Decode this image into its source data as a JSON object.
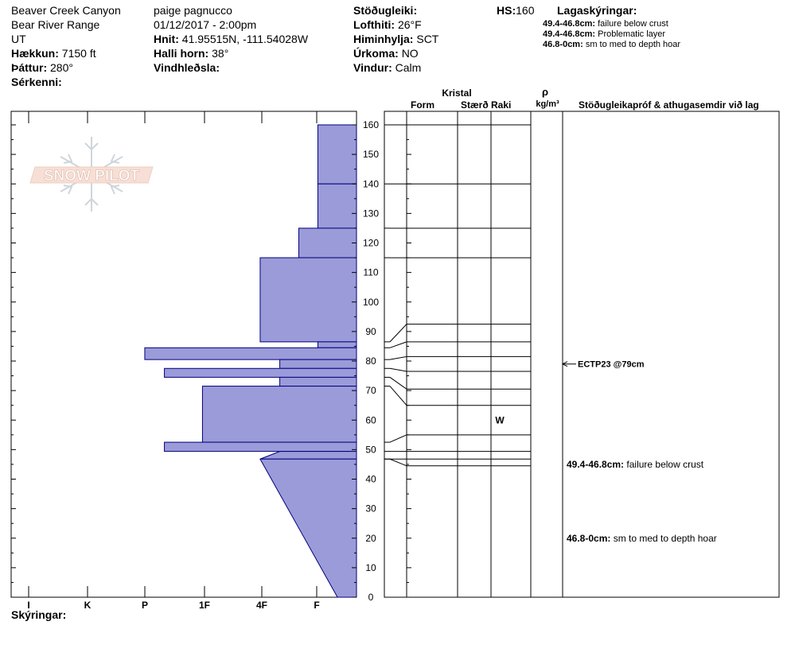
{
  "header": {
    "location": "Beaver Creek Canyon",
    "range": "Bear River Range",
    "state": "UT",
    "elevation_label": "Hækkun:",
    "elevation_value": "7150 ft",
    "aspect_label": "Þáttur:",
    "aspect_value": "280°",
    "features_label": "Sérkenni:",
    "observer": "paige pagnucco",
    "datetime": "01/12/2017 - 2:00pm",
    "coords_label": "Hnit:",
    "coords_value": "41.95515N, -111.54028W",
    "slope_label": "Halli horn:",
    "slope_value": "38°",
    "wind_loading_label": "Vindhleðsla:",
    "stability_label": "Stöðugleiki:",
    "air_temp_label": "Lofthiti:",
    "air_temp_value": "26°F",
    "sky_label": "Himinhylja:",
    "sky_value": "SCT",
    "precip_label": "Úrkoma:",
    "precip_value": "NO",
    "wind_label": "Vindur:",
    "wind_value": "Calm",
    "hs_label": "HS:",
    "hs_value": "160",
    "legend_title": "Lagaskýringar:",
    "legend_items": [
      {
        "range": "49.4-46.8cm:",
        "text": "failure below crust"
      },
      {
        "range": "49.4-46.8cm:",
        "text": "Problematic layer"
      },
      {
        "range": "46.8-0cm:",
        "text": "sm to med to depth hoar"
      }
    ]
  },
  "logo": {
    "text": "SNOW PILOT"
  },
  "columns": {
    "crystal_title": "Kristal",
    "form": "Form",
    "size": "Stærð",
    "moisture": "Raki",
    "density_symbol": "ρ",
    "density_unit": "kg/m³",
    "comments": "Stöðugleikapróf & athugasemdir við lag"
  },
  "footer": {
    "notes_label": "Skýringar:"
  },
  "chart_data": {
    "type": "bar",
    "orientation": "horizontal",
    "hardness_categories": [
      "I",
      "K",
      "P",
      "1F",
      "4F",
      "F"
    ],
    "ylim": [
      0,
      160
    ],
    "y_ticks": [
      0,
      10,
      20,
      30,
      40,
      50,
      60,
      70,
      80,
      90,
      100,
      110,
      120,
      130,
      140,
      150,
      160
    ],
    "layers": [
      {
        "top": 160,
        "bottom": 140,
        "hardness": 0.67
      },
      {
        "top": 140,
        "bottom": 125,
        "hardness": 0.67
      },
      {
        "top": 125,
        "bottom": 115,
        "hardness": 1.0
      },
      {
        "top": 115,
        "bottom": 86.5,
        "hardness": 1.67
      },
      {
        "top": 86.5,
        "bottom": 84.5,
        "hardness": 0.67
      },
      {
        "top": 84.5,
        "bottom": 80.5,
        "hardness": 3.67
      },
      {
        "top": 80.5,
        "bottom": 77.5,
        "hardness": 1.33
      },
      {
        "top": 77.5,
        "bottom": 74.5,
        "hardness": 3.33
      },
      {
        "top": 74.5,
        "bottom": 71.5,
        "hardness": 1.33
      },
      {
        "top": 71.5,
        "bottom": 52.5,
        "hardness": 2.67
      },
      {
        "top": 52.5,
        "bottom": 49.4,
        "hardness": 3.33
      }
    ],
    "tapered_layers": [
      {
        "top": 49.4,
        "bottom": 46.8,
        "hardness_top": 1.33,
        "hardness_bottom": 1.67
      },
      {
        "top": 46.8,
        "bottom": 0,
        "hardness_top": 1.67,
        "hardness_bottom": 0.33
      }
    ],
    "layer_boundaries": [
      160,
      140,
      125,
      115,
      92.5,
      86.5,
      81.5,
      76.5,
      70.5,
      65,
      55,
      49.4,
      46.8,
      44.5
    ],
    "moisture_marks": [
      {
        "label": "W",
        "height": 60
      }
    ],
    "annotations": [
      {
        "height": 79,
        "text": "ECTP23 @79cm",
        "arrow": true
      },
      {
        "height": 45,
        "range": "49.4-46.8cm:",
        "text": "failure below crust"
      },
      {
        "height": 20,
        "range": "46.8-0cm:",
        "text": "sm to med to depth hoar"
      }
    ],
    "colors": {
      "fill": "#9b9bd9",
      "stroke": "#000080"
    }
  }
}
